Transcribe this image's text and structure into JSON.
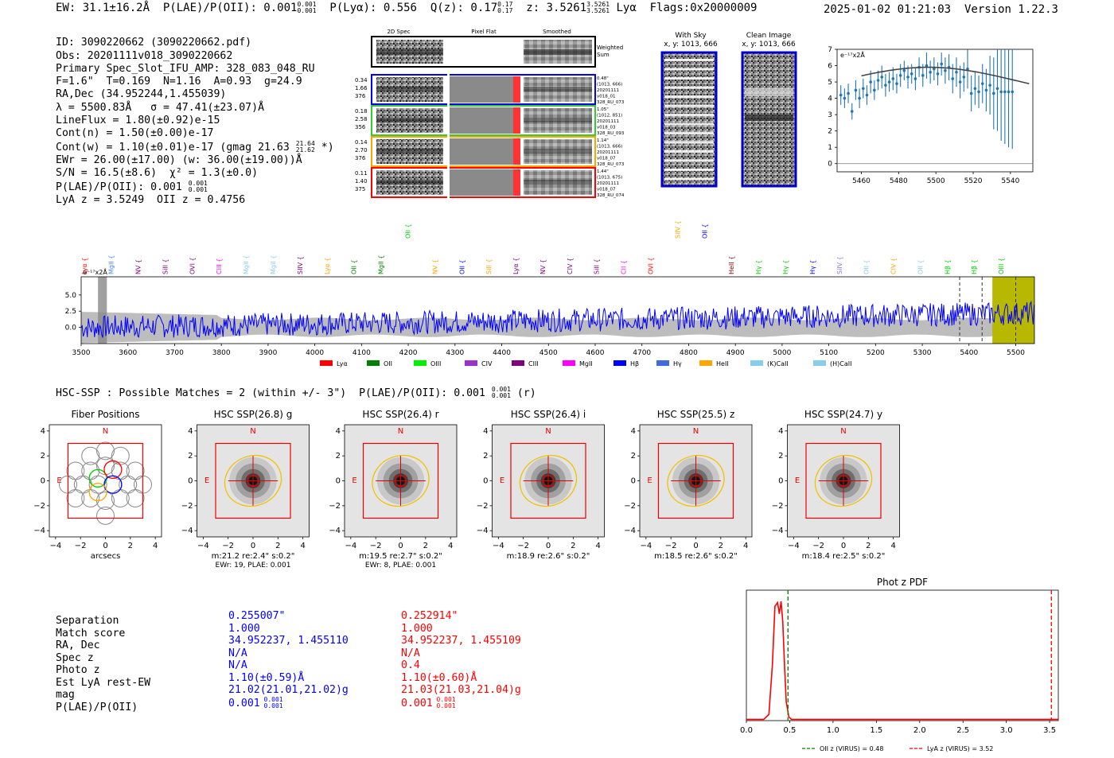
{
  "header": {
    "ew": "EW: 31.1±16.2Å",
    "plae_label": "P(LAE)/P(OII): 0.001",
    "plae_hi": "0.001",
    "plae_lo": "0.001",
    "plya": "P(Lyα): 0.556",
    "qz_label": "Q(z): 0.17",
    "qz_hi": "0.17",
    "qz_lo": "0.17",
    "z_label": "z: 3.5261",
    "z_hi": "3.5261",
    "z_lo": "3.5261",
    "z_tag": "Lyα",
    "flags": "Flags:0x20000009",
    "timestamp": "2025-01-02 01:21:03",
    "version": "Version 1.22.3"
  },
  "info": {
    "id": "ID: 3090220662 (3090220662.pdf)",
    "obs": "Obs: 20201111v018_3090220662",
    "primary": "Primary Spec_Slot_IFU_AMP: 328_083_048_RU",
    "params": "F=1.6\"  T=0.169  N=1.16  A=0.93  g=24.9",
    "radec": "RA,Dec (34.952244,1.455039)",
    "lambda": "λ = 5500.83Å   σ = 47.41(±23.07)Å",
    "lineflux": "LineFlux = 1.80(±0.92)e-15",
    "contn": "Cont(n) = 1.50(±0.00)e-17",
    "contw": "Cont(w) = 1.10(±0.01)e-17 (gmag 21.63",
    "contw_hi": "21.64",
    "contw_lo": "21.62",
    "contw_tail": " *)",
    "ewr": "EWr = 26.00(±17.00) (w: 36.00(±19.00))Å",
    "sn": "S/N = 16.5(±8.6)  χ² = 1.3(±0.0)",
    "plae": "P(LAE)/P(OII): 0.001",
    "plae_hi": "0.001",
    "plae_lo": "0.001",
    "lya_z": "LyA z = 3.5249  OII z = 0.4756"
  },
  "cutouts": {
    "headers": [
      "2D Spec",
      "Pixel Flat",
      "Smoothed"
    ],
    "weighted_sum": [
      "Weighted",
      "Sum"
    ],
    "rows": [
      {
        "color": "#0000ff",
        "left": [
          "0.34",
          "1.66",
          "376"
        ],
        "right": [
          "0.48\"",
          "(1013, 666)",
          "20201111",
          "v018_01",
          "328_RU_073"
        ]
      },
      {
        "color": "#33cc33",
        "left": [
          "0.18",
          "2.58",
          "356"
        ],
        "right": [
          "1.05\"",
          "(1012, 851)",
          "20201111",
          "v018_03",
          "328_RU_093"
        ]
      },
      {
        "color": "#ffa500",
        "left": [
          "0.14",
          "2.70",
          "376"
        ],
        "right": [
          "1.14\"",
          "(1013, 666)",
          "20201111",
          "v018_07",
          "328_RU_073"
        ]
      },
      {
        "color": "#ff0000",
        "left": [
          "0.11",
          "1.40",
          "375"
        ],
        "right": [
          "1.44\"",
          "(1013, 675)",
          "20201111",
          "v018_07",
          "328_RU_074"
        ]
      }
    ],
    "with_sky": [
      "With Sky",
      "x, y: 1013, 666"
    ],
    "clean_image": [
      "Clean Image",
      "x, y: 1013, 666"
    ]
  },
  "zoom_chart": {
    "type": "scatter",
    "ylabel": "e⁻¹⁷x2Å",
    "xlim": [
      5447,
      5552
    ],
    "ylim": [
      -0.5,
      7
    ],
    "xticks": [
      "5460",
      "5480",
      "5500",
      "5520",
      "5540"
    ],
    "yticks": [
      "0",
      "1",
      "2",
      "3",
      "4",
      "5",
      "6",
      "7"
    ],
    "x": [
      5449,
      5451,
      5453,
      5455,
      5457,
      5459,
      5461,
      5463,
      5465,
      5467,
      5469,
      5471,
      5473,
      5475,
      5477,
      5479,
      5481,
      5483,
      5485,
      5487,
      5489,
      5491,
      5493,
      5495,
      5497,
      5499,
      5501,
      5503,
      5505,
      5507,
      5509,
      5511,
      5513,
      5515,
      5517,
      5519,
      5521,
      5523,
      5525,
      5527,
      5529,
      5531,
      5533,
      5535,
      5537,
      5539,
      5541
    ],
    "y": [
      4.2,
      4.0,
      4.3,
      3.2,
      4.5,
      4.0,
      4.6,
      4.2,
      5.0,
      4.5,
      5.1,
      5.3,
      4.8,
      5.0,
      5.2,
      4.9,
      5.4,
      5.7,
      5.3,
      5.5,
      5.2,
      5.9,
      5.4,
      6.0,
      5.6,
      5.8,
      5.5,
      6.1,
      5.7,
      5.9,
      5.2,
      5.6,
      5.0,
      5.3,
      5.8,
      4.3,
      4.6,
      4.4,
      4.9,
      4.5,
      4.8,
      4.3,
      4.6,
      4.4,
      4.4,
      4.4,
      4.4
    ],
    "yerr": [
      0.6,
      0.6,
      0.6,
      0.5,
      0.6,
      0.6,
      0.6,
      0.6,
      0.7,
      0.6,
      0.6,
      0.7,
      0.7,
      0.6,
      0.7,
      0.6,
      0.7,
      0.6,
      0.7,
      0.6,
      0.7,
      0.6,
      0.7,
      0.8,
      0.7,
      0.7,
      0.7,
      0.7,
      0.8,
      0.8,
      0.9,
      0.9,
      1.0,
      0.9,
      1.2,
      1.1,
      1.0,
      1.0,
      1.2,
      1.3,
      1.8,
      2.2,
      2.6,
      3.0,
      3.2,
      3.4,
      3.5
    ],
    "fit": {
      "center": 5496,
      "peak": 5.9,
      "sigma": 47.4,
      "base": 3.8
    }
  },
  "spectrum": {
    "type": "line",
    "ylabel": "e⁻¹⁷x2Å",
    "xlim": [
      3500,
      5540
    ],
    "ylim": [
      -2.5,
      7.8
    ],
    "xticks": [
      "3500",
      "3600",
      "3700",
      "3800",
      "3900",
      "4000",
      "4100",
      "4200",
      "4300",
      "4400",
      "4500",
      "4600",
      "4700",
      "4800",
      "4900",
      "5000",
      "5100",
      "5200",
      "5300",
      "5400",
      "5500"
    ],
    "yticks": [
      "0.0",
      "2.5",
      "5.0"
    ],
    "line_color": "#0000ff",
    "lines": [
      {
        "name": "Lyα",
        "color": "#ff0000",
        "row": 0
      },
      {
        "name": "MgII",
        "color": "#4488ff",
        "row": 0
      },
      {
        "name": "NV",
        "color": "#800080",
        "row": 0
      },
      {
        "name": "SiII",
        "color": "#800080",
        "row": 0
      },
      {
        "name": "OVI",
        "color": "#800080",
        "row": 0
      },
      {
        "name": "CIII",
        "color": "#ff00ff",
        "row": 0
      },
      {
        "name": "MgII",
        "color": "#87ceeb",
        "row": 0
      },
      {
        "name": "MgII",
        "color": "#87ceeb",
        "row": 0
      },
      {
        "name": "SIIV",
        "color": "#800080",
        "row": 0
      },
      {
        "name": "Lyα",
        "color": "#ffa500",
        "row": 0
      },
      {
        "name": "OII",
        "color": "#008000",
        "row": 0
      },
      {
        "name": "MgII",
        "color": "#008000",
        "row": 0
      },
      {
        "name": "OII",
        "color": "#00cc00",
        "row": 1
      },
      {
        "name": "NV",
        "color": "#ffa500",
        "row": 0
      },
      {
        "name": "OII",
        "color": "#0000ff",
        "row": 0
      },
      {
        "name": "SiII",
        "color": "#ffa500",
        "row": 0
      },
      {
        "name": "Lyα",
        "color": "#800080",
        "row": 0
      },
      {
        "name": "NV",
        "color": "#800080",
        "row": 0
      },
      {
        "name": "CIV",
        "color": "#800080",
        "row": 0
      },
      {
        "name": "SiII",
        "color": "#800080",
        "row": 0
      },
      {
        "name": "CII",
        "color": "#ff00ff",
        "row": 0
      },
      {
        "name": "OVI",
        "color": "#ff0000",
        "row": 0
      },
      {
        "name": "SiIV",
        "color": "#ffa500",
        "row": 1
      },
      {
        "name": "OII",
        "color": "#0000ff",
        "row": 1
      },
      {
        "name": "HeII",
        "color": "#800000",
        "row": 0
      },
      {
        "name": "Hγ",
        "color": "#00cc00",
        "row": 0
      },
      {
        "name": "Hγ",
        "color": "#00cc00",
        "row": 0
      },
      {
        "name": "Hγ",
        "color": "#0000ff",
        "row": 0
      },
      {
        "name": "SiIV",
        "color": "#9370db",
        "row": 0
      },
      {
        "name": "OII",
        "color": "#87ceeb",
        "row": 0
      },
      {
        "name": "CIV",
        "color": "#ffa500",
        "row": 0
      },
      {
        "name": "OII",
        "color": "#87ceeb",
        "row": 0
      },
      {
        "name": "Hβ",
        "color": "#00cc00",
        "row": 0
      },
      {
        "name": "Hβ",
        "color": "#00cc00",
        "row": 0
      },
      {
        "name": "OIII",
        "color": "#00cc00",
        "row": 0
      }
    ],
    "legend": [
      {
        "name": "Lyα",
        "color": "#ff0000"
      },
      {
        "name": "OII",
        "color": "#008000"
      },
      {
        "name": "OIII",
        "color": "#00ee00"
      },
      {
        "name": "CIV",
        "color": "#9932cc"
      },
      {
        "name": "CIII",
        "color": "#800080"
      },
      {
        "name": "MgII",
        "color": "#ff00ff"
      },
      {
        "name": "Hβ",
        "color": "#0000ff"
      },
      {
        "name": "Hγ",
        "color": "#4169e1"
      },
      {
        "name": "HeII",
        "color": "#ffa500"
      },
      {
        "name": "(K)CaII",
        "color": "#87ceeb"
      },
      {
        "name": "(H)CaII",
        "color": "#87ceeb"
      }
    ],
    "highlight_range": [
      5450,
      5540
    ],
    "dashed_markers": [
      5380,
      5428,
      5500
    ]
  },
  "hsc": {
    "header": "HSC-SSP : Possible Matches = 2 (within +/- 3\")  P(LAE)/P(OII): 0.001",
    "header_hi": "0.001",
    "header_lo": "0.001",
    "header_tail": " (r)",
    "panels": [
      {
        "title": "Fiber Positions",
        "caption1": "arcsecs",
        "caption2": ""
      },
      {
        "title": "HSC SSP(26.8) g",
        "caption1": "m:21.2  re:2.4\"  s:0.2\"",
        "caption2": "EWr: 19, PLAE: 0.001"
      },
      {
        "title": "HSC SSP(26.4) r",
        "caption1": "m:19.5  re:2.7\"  s:0.2\"",
        "caption2": "EWr: 8, PLAE: 0.001"
      },
      {
        "title": "HSC SSP(26.4) i",
        "caption1": "m:18.9  re:2.6\"  s:0.2\"",
        "caption2": ""
      },
      {
        "title": "HSC SSP(25.5) z",
        "caption1": "m:18.5  re:2.6\"  s:0.2\"",
        "caption2": ""
      },
      {
        "title": "HSC SSP(24.7) y",
        "caption1": "m:18.4  re:2.5\"  s:0.2\"",
        "caption2": ""
      }
    ],
    "ticks": [
      "−4",
      "−2",
      "0",
      "2",
      "4"
    ],
    "north": "N",
    "east": "E"
  },
  "table": {
    "labels": [
      "Separation",
      "Match score",
      "RA, Dec",
      "Spec z",
      "Photo z",
      "Est LyA rest-EW",
      "mag",
      "P(LAE)/P(OII)"
    ],
    "col1": [
      "0.255007\"",
      "1.000",
      "34.952237, 1.455110",
      "N/A",
      "N/A",
      "1.10(±0.59)Å",
      "21.02(21.01,21.02)g",
      "0.001"
    ],
    "col1_frac": [
      "0.001",
      "0.001"
    ],
    "col2": [
      "0.252914\"",
      "1.000",
      "34.952237, 1.455109",
      "N/A",
      "0.4",
      "1.10(±0.60)Å",
      "21.03(21.03,21.04)g",
      "0.001"
    ],
    "col2_frac": [
      "0.001",
      "0.001"
    ]
  },
  "chart_data": [
    {
      "type": "line",
      "title": "Phot z PDF",
      "xlim": [
        0,
        3.6
      ],
      "ylim": [
        0,
        1.05
      ],
      "xticks": [
        "0.0",
        "0.5",
        "1.0",
        "1.5",
        "2.0",
        "2.5",
        "3.0",
        "3.5"
      ],
      "x": [
        0,
        0.2,
        0.26,
        0.3,
        0.33,
        0.36,
        0.38,
        0.4,
        0.42,
        0.44,
        0.46,
        0.49,
        0.52,
        0.6,
        1.0,
        2.0,
        3.0,
        3.6
      ],
      "y": [
        0.01,
        0.01,
        0.05,
        0.45,
        0.92,
        0.95,
        0.86,
        0.96,
        0.8,
        0.45,
        0.15,
        0.03,
        0.01,
        0.01,
        0.01,
        0.01,
        0.01,
        0.01
      ],
      "vlines": [
        {
          "x": 0.48,
          "color": "#008000",
          "label": "OII z (VIRUS) = 0.48"
        },
        {
          "x": 3.52,
          "color": "#ff0000",
          "label": "LyA z (VIRUS) = 3.52"
        }
      ]
    }
  ]
}
